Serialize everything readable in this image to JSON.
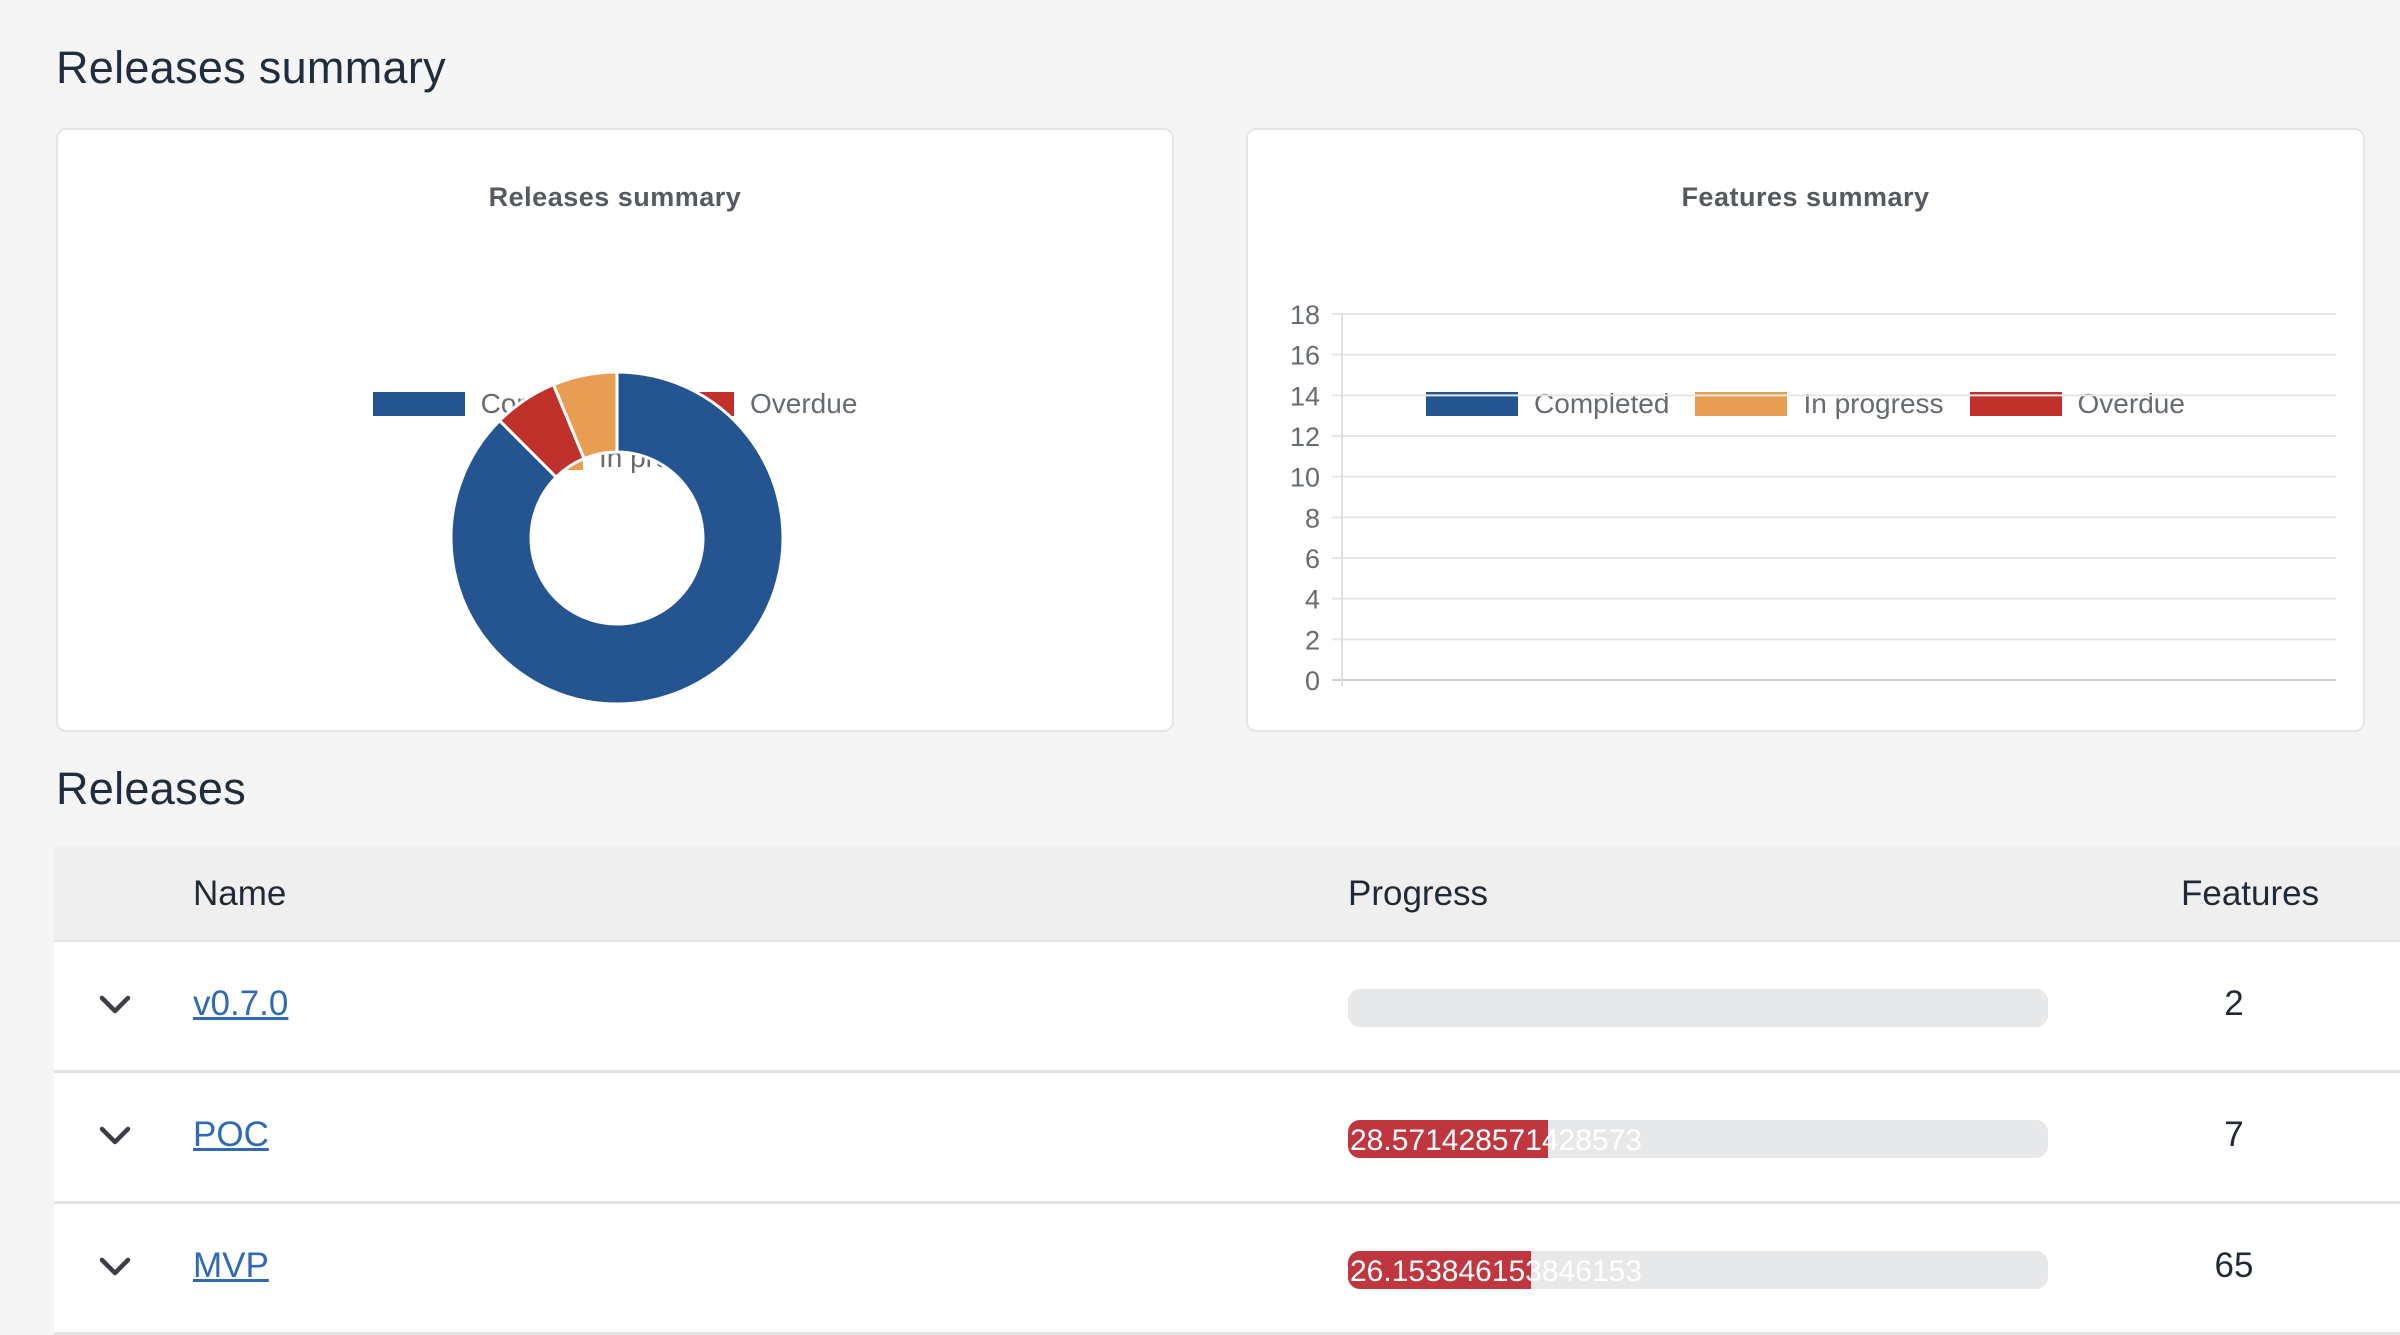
{
  "page": {
    "summary_title": "Releases summary",
    "releases_title": "Releases"
  },
  "colors": {
    "completed": "#245590",
    "overdue": "#c0312b",
    "in_progress": "#e89e52",
    "progress_fill": "#c0363f",
    "link": "#2f6ab7"
  },
  "chart_data": [
    {
      "type": "pie",
      "title": "Releases summary",
      "legend": [
        "Completed",
        "Overdue",
        "In progress"
      ],
      "legend_position": "top",
      "labels": [
        "Completed",
        "Overdue",
        "In progress"
      ],
      "values": [
        14,
        1,
        1
      ],
      "donut": true
    },
    {
      "type": "bar",
      "title": "Features summary",
      "legend": [
        "Completed",
        "In progress",
        "Overdue"
      ],
      "legend_position": "top",
      "categories": [],
      "series": [
        {
          "name": "Completed",
          "values": []
        },
        {
          "name": "In progress",
          "values": []
        },
        {
          "name": "Overdue",
          "values": []
        }
      ],
      "ylim": [
        0,
        18
      ],
      "yticks": [
        "18",
        "16",
        "14",
        "12",
        "10",
        "8",
        "6",
        "4",
        "2",
        "0"
      ],
      "grid": true
    }
  ],
  "table": {
    "headers": {
      "name": "Name",
      "progress": "Progress",
      "features": "Features"
    },
    "rows": [
      {
        "name": "v0.7.0",
        "progress": 0,
        "progress_label": "",
        "features": "2"
      },
      {
        "name": "POC",
        "progress": 28.57142857142857,
        "progress_label": "28.571428571428573",
        "features": "7"
      },
      {
        "name": "MVP",
        "progress": 26.153846153846153,
        "progress_label": "26.153846153846153",
        "features": "65"
      }
    ]
  }
}
